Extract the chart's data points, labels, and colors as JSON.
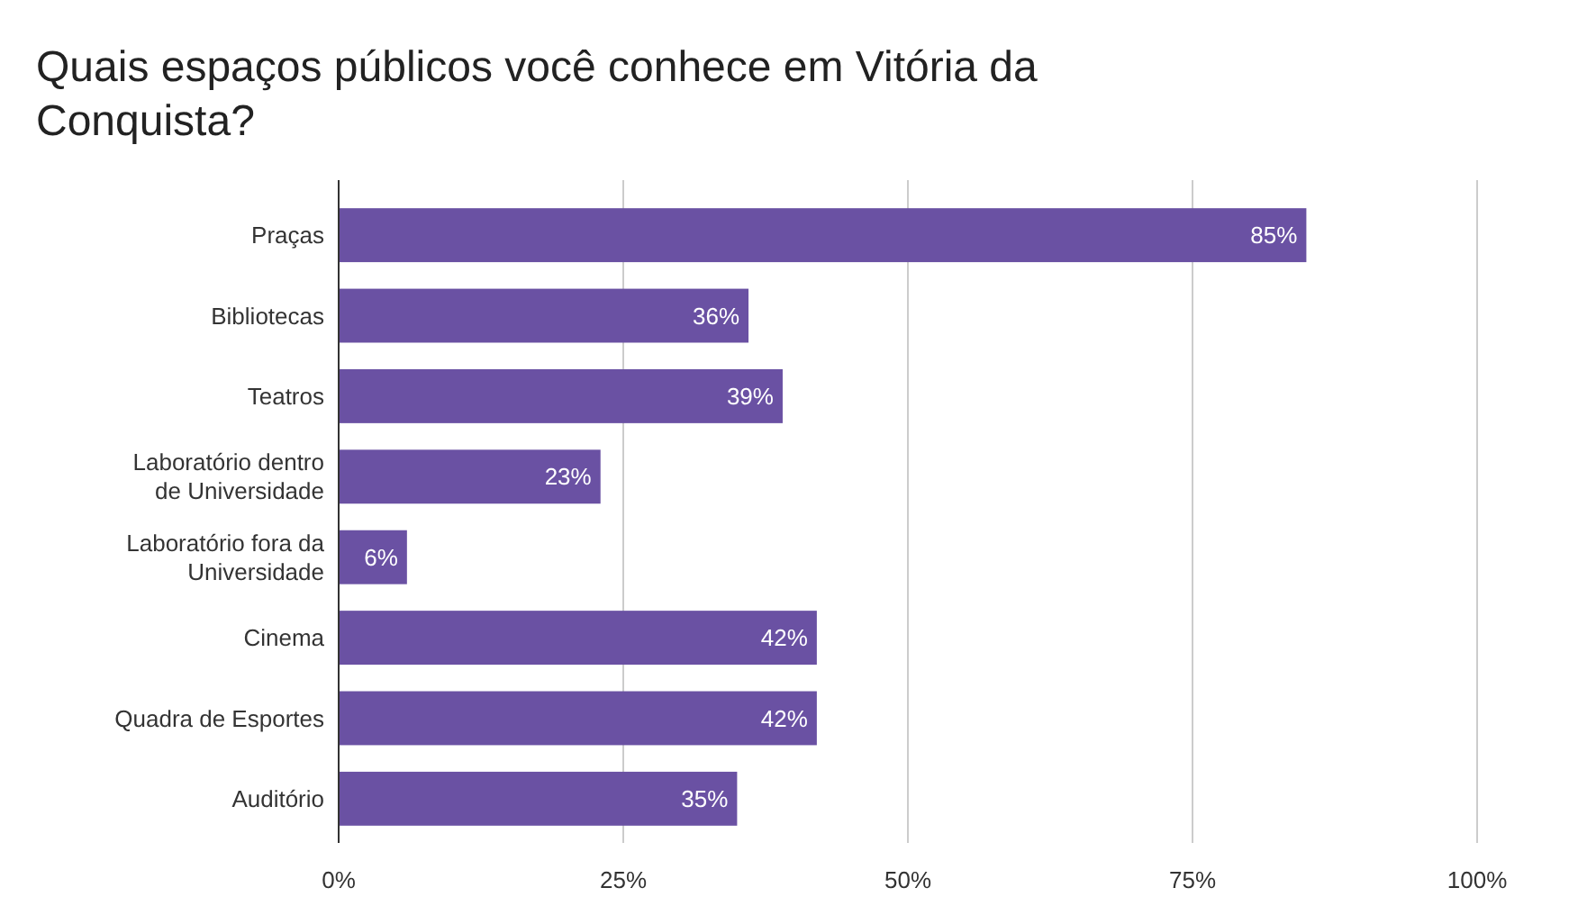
{
  "chart_data": {
    "type": "bar",
    "orientation": "horizontal",
    "title": "Quais espaços públicos você conhece em Vitória da Conquista?",
    "categories": [
      "Praças",
      "Bibliotecas",
      "Teatros",
      "Laboratório dentro de Universidade",
      "Laboratório fora da Universidade",
      "Cinema",
      "Quadra de Esportes",
      "Auditório"
    ],
    "values": [
      85,
      36,
      39,
      23,
      6,
      42,
      42,
      35
    ],
    "value_labels": [
      "85%",
      "36%",
      "39%",
      "23%",
      "6%",
      "42%",
      "42%",
      "35%"
    ],
    "color": "#6a51a3",
    "xlim": [
      0,
      100
    ],
    "xticks": [
      {
        "value": 0,
        "label": "0%"
      },
      {
        "value": 25,
        "label": "25%"
      },
      {
        "value": 50,
        "label": "50%"
      },
      {
        "value": 75,
        "label": "75%"
      },
      {
        "value": 100,
        "label": "100%"
      }
    ],
    "grid": "x"
  }
}
